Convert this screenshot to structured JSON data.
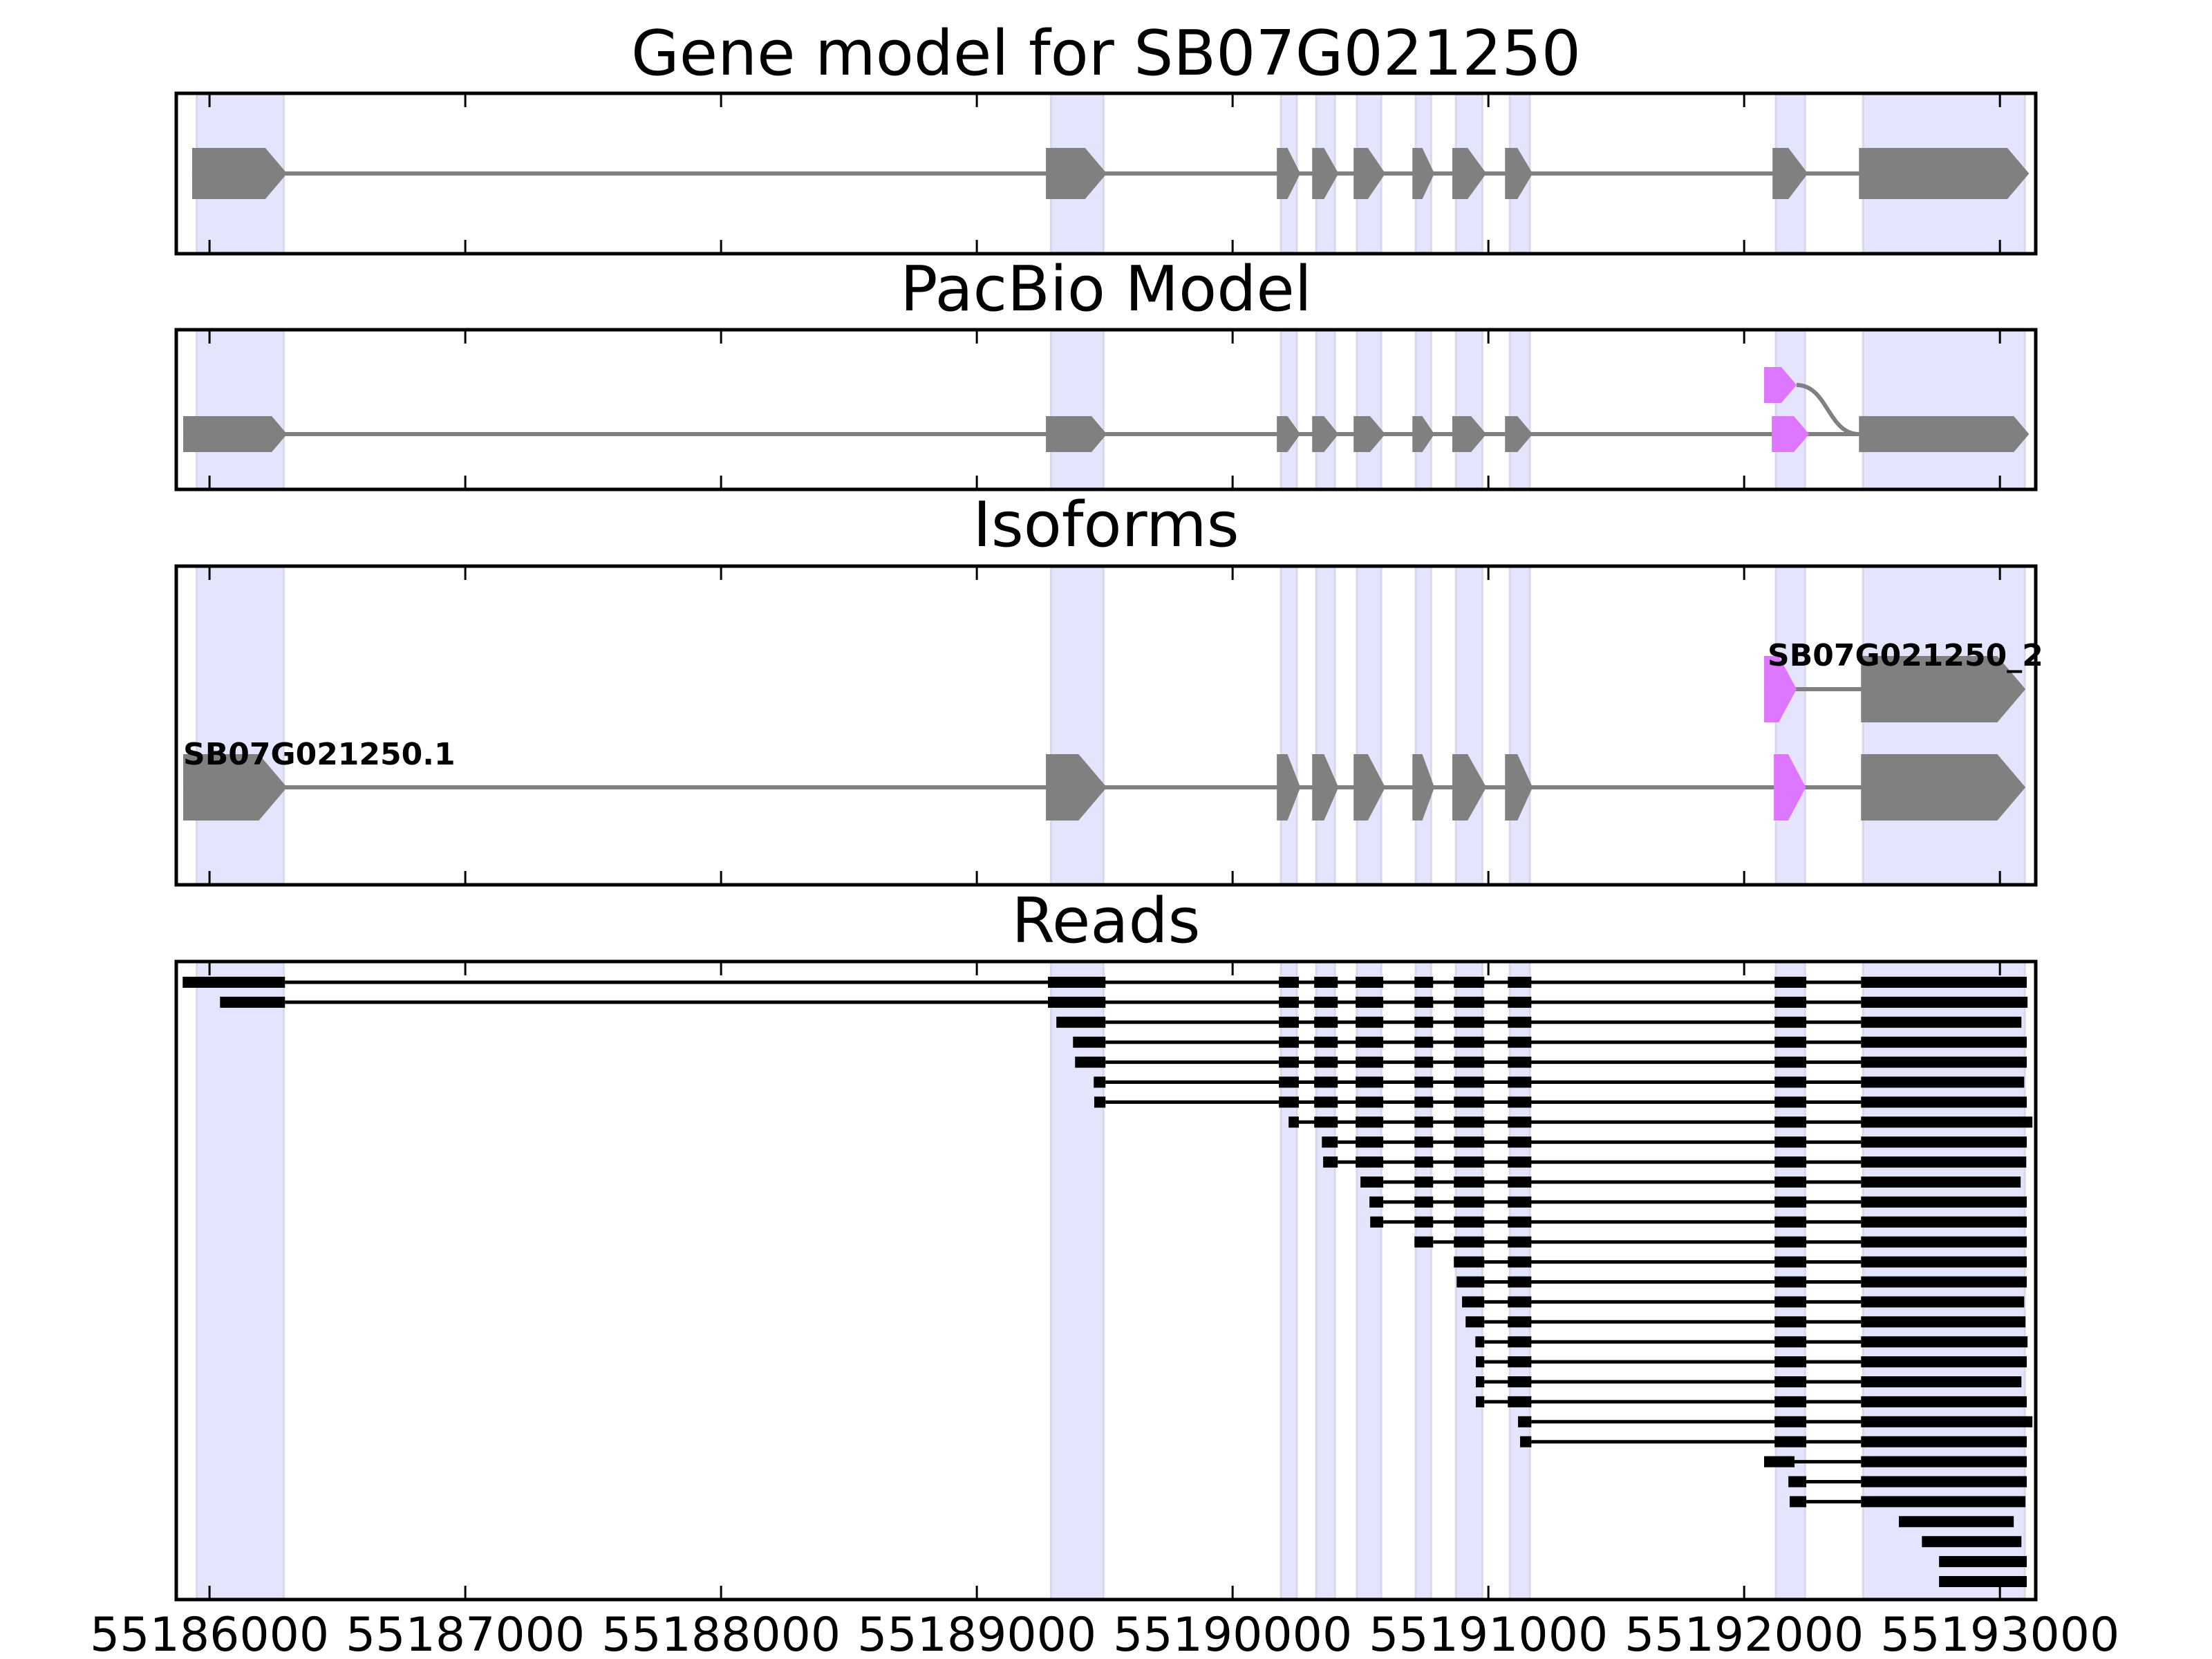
{
  "chart_data": {
    "type": "gene-track",
    "xlim": [
      55185870,
      55193140
    ],
    "xticks": [
      55186000,
      55187000,
      55188000,
      55189000,
      55190000,
      55191000,
      55192000,
      55193000
    ],
    "xtick_labels": [
      "55186000",
      "55187000",
      "55188000",
      "55189000",
      "55190000",
      "55191000",
      "55192000",
      "55193000"
    ],
    "colors": {
      "exon": "#808080",
      "intron": "#808080",
      "alt_exon": "#dd77ff",
      "band": "#e4e4fc",
      "band_edge": "#d8d8ec",
      "read": "#000000",
      "axis": "#000000"
    },
    "highlight_bands": [
      [
        55185950,
        55186290
      ],
      [
        55189290,
        55189495
      ],
      [
        55190189,
        55190251
      ],
      [
        55190327,
        55190400
      ],
      [
        55190486,
        55190581
      ],
      [
        55190716,
        55190776
      ],
      [
        55190873,
        55190976
      ],
      [
        55191084,
        55191162
      ],
      [
        55192124,
        55192238
      ],
      [
        55192465,
        55193097
      ]
    ],
    "panels": [
      {
        "id": "gene-model",
        "title": "Gene model for SB07G021250",
        "tracks": [
          {
            "label": "",
            "exons": [
              [
                55185932,
                55186303,
                "normal"
              ],
              [
                55189270,
                55189508,
                "normal"
              ],
              [
                55190173,
                55190265,
                "normal"
              ],
              [
                55190311,
                55190414,
                "normal"
              ],
              [
                55190473,
                55190597,
                "normal"
              ],
              [
                55190703,
                55190789,
                "normal"
              ],
              [
                55190859,
                55190992,
                "normal"
              ],
              [
                55191065,
                55191173,
                "normal"
              ],
              [
                55192111,
                55192249,
                "normal"
              ],
              [
                55192449,
                55193114,
                "normal"
              ]
            ]
          }
        ]
      },
      {
        "id": "pacbio-model",
        "title": "PacBio Model",
        "tracks": [
          {
            "label": "",
            "exons": [
              [
                55185897,
                55186303,
                "normal"
              ],
              [
                55189270,
                55189508,
                "normal"
              ],
              [
                55190173,
                55190265,
                "normal"
              ],
              [
                55190311,
                55190414,
                "normal"
              ],
              [
                55190473,
                55190597,
                "normal"
              ],
              [
                55190703,
                55190789,
                "normal"
              ],
              [
                55190859,
                55190992,
                "normal"
              ],
              [
                55191065,
                55191173,
                "normal"
              ],
              [
                55192108,
                55192254,
                "alt"
              ],
              [
                55192449,
                55193114,
                "normal"
              ]
            ]
          }
        ],
        "alt_branch": {
          "exon": [
            55192078,
            55192205,
            "alt"
          ],
          "joins_at": 55192449
        }
      },
      {
        "id": "isoforms",
        "title": "Isoforms",
        "tracks": [
          {
            "label": "SB07G021250.1",
            "exons": [
              [
                55185897,
                55186303,
                "normal"
              ],
              [
                55189270,
                55189508,
                "normal"
              ],
              [
                55190173,
                55190265,
                "normal"
              ],
              [
                55190311,
                55190414,
                "normal"
              ],
              [
                55190473,
                55190597,
                "normal"
              ],
              [
                55190703,
                55190789,
                "normal"
              ],
              [
                55190859,
                55190992,
                "normal"
              ],
              [
                55191065,
                55191173,
                "normal"
              ],
              [
                55192116,
                55192241,
                "alt"
              ],
              [
                55192457,
                55193100,
                "normal"
              ]
            ]
          },
          {
            "label": "SB07G021250_2",
            "exons": [
              [
                55192078,
                55192205,
                "alt"
              ],
              [
                55192457,
                55193100,
                "normal"
              ]
            ]
          }
        ]
      },
      {
        "id": "reads",
        "title": "Reads",
        "reads": [
          [
            [
              55185895,
              55186295
            ],
            [
              55189278,
              55189503
            ],
            [
              55190181,
              55190259
            ],
            [
              55190319,
              55190411
            ],
            [
              55190481,
              55190589
            ],
            [
              55190711,
              55190784
            ],
            [
              55190865,
              55190984
            ],
            [
              55191076,
              55191168
            ],
            [
              55192119,
              55192243
            ],
            [
              55192457,
              55193105
            ]
          ],
          [
            [
              55186041,
              55186295
            ],
            [
              55189278,
              55189503
            ],
            [
              55190181,
              55190259
            ],
            [
              55190319,
              55190411
            ],
            [
              55190481,
              55190589
            ],
            [
              55190711,
              55190784
            ],
            [
              55190865,
              55190984
            ],
            [
              55191076,
              55191168
            ],
            [
              55192119,
              55192243
            ],
            [
              55192457,
              55193108
            ]
          ],
          [
            [
              55189311,
              55189503
            ],
            [
              55190181,
              55190259
            ],
            [
              55190319,
              55190411
            ],
            [
              55190481,
              55190589
            ],
            [
              55190711,
              55190784
            ],
            [
              55190865,
              55190984
            ],
            [
              55191076,
              55191168
            ],
            [
              55192119,
              55192243
            ],
            [
              55192457,
              55193084
            ]
          ],
          [
            [
              55189376,
              55189503
            ],
            [
              55190181,
              55190259
            ],
            [
              55190319,
              55190411
            ],
            [
              55190481,
              55190589
            ],
            [
              55190711,
              55190784
            ],
            [
              55190865,
              55190984
            ],
            [
              55191076,
              55191168
            ],
            [
              55192119,
              55192243
            ],
            [
              55192457,
              55193105
            ]
          ],
          [
            [
              55189384,
              55189503
            ],
            [
              55190181,
              55190259
            ],
            [
              55190319,
              55190411
            ],
            [
              55190481,
              55190589
            ],
            [
              55190711,
              55190784
            ],
            [
              55190865,
              55190984
            ],
            [
              55191076,
              55191168
            ],
            [
              55192119,
              55192243
            ],
            [
              55192457,
              55193105
            ]
          ],
          [
            [
              55189457,
              55189503
            ],
            [
              55190181,
              55190259
            ],
            [
              55190319,
              55190411
            ],
            [
              55190481,
              55190589
            ],
            [
              55190711,
              55190784
            ],
            [
              55190865,
              55190984
            ],
            [
              55191076,
              55191168
            ],
            [
              55192119,
              55192243
            ],
            [
              55192457,
              55193095
            ]
          ],
          [
            [
              55189459,
              55189503
            ],
            [
              55190181,
              55190259
            ],
            [
              55190319,
              55190411
            ],
            [
              55190481,
              55190589
            ],
            [
              55190711,
              55190784
            ],
            [
              55190865,
              55190984
            ],
            [
              55191076,
              55191168
            ],
            [
              55192119,
              55192243
            ],
            [
              55192457,
              55193105
            ]
          ],
          [
            [
              55190219,
              55190259
            ],
            [
              55190319,
              55190411
            ],
            [
              55190481,
              55190589
            ],
            [
              55190711,
              55190784
            ],
            [
              55190865,
              55190984
            ],
            [
              55191076,
              55191168
            ],
            [
              55192119,
              55192243
            ],
            [
              55192457,
              55193127
            ]
          ],
          [
            [
              55190349,
              55190411
            ],
            [
              55190481,
              55190589
            ],
            [
              55190711,
              55190784
            ],
            [
              55190865,
              55190984
            ],
            [
              55191076,
              55191168
            ],
            [
              55192119,
              55192243
            ],
            [
              55192457,
              55193105
            ]
          ],
          [
            [
              55190354,
              55190411
            ],
            [
              55190481,
              55190589
            ],
            [
              55190711,
              55190784
            ],
            [
              55190865,
              55190984
            ],
            [
              55191076,
              55191168
            ],
            [
              55192119,
              55192243
            ],
            [
              55192457,
              55193103
            ]
          ],
          [
            [
              55190500,
              55190589
            ],
            [
              55190711,
              55190784
            ],
            [
              55190865,
              55190984
            ],
            [
              55191076,
              55191168
            ],
            [
              55192119,
              55192243
            ],
            [
              55192457,
              55193081
            ]
          ],
          [
            [
              55190535,
              55190589
            ],
            [
              55190711,
              55190784
            ],
            [
              55190865,
              55190984
            ],
            [
              55191076,
              55191168
            ],
            [
              55192119,
              55192243
            ],
            [
              55192457,
              55193105
            ]
          ],
          [
            [
              55190538,
              55190589
            ],
            [
              55190711,
              55190784
            ],
            [
              55190865,
              55190984
            ],
            [
              55191076,
              55191168
            ],
            [
              55192119,
              55192243
            ],
            [
              55192457,
              55193105
            ]
          ],
          [
            [
              55190711,
              55190784
            ],
            [
              55190865,
              55190984
            ],
            [
              55191076,
              55191168
            ],
            [
              55192119,
              55192243
            ],
            [
              55192457,
              55193105
            ]
          ],
          [
            [
              55190865,
              55190984
            ],
            [
              55191076,
              55191168
            ],
            [
              55192119,
              55192243
            ],
            [
              55192457,
              55193105
            ]
          ],
          [
            [
              55190876,
              55190984
            ],
            [
              55191076,
              55191168
            ],
            [
              55192119,
              55192243
            ],
            [
              55192457,
              55193105
            ]
          ],
          [
            [
              55190897,
              55190984
            ],
            [
              55191076,
              55191168
            ],
            [
              55192119,
              55192243
            ],
            [
              55192457,
              55193095
            ]
          ],
          [
            [
              55190911,
              55190984
            ],
            [
              55191076,
              55191168
            ],
            [
              55192119,
              55192243
            ],
            [
              55192457,
              55193100
            ]
          ],
          [
            [
              55190949,
              55190984
            ],
            [
              55191076,
              55191168
            ],
            [
              55192119,
              55192243
            ],
            [
              55192457,
              55193108
            ]
          ],
          [
            [
              55190951,
              55190984
            ],
            [
              55191076,
              55191168
            ],
            [
              55192119,
              55192243
            ],
            [
              55192457,
              55193105
            ]
          ],
          [
            [
              55190951,
              55190984
            ],
            [
              55191076,
              55191168
            ],
            [
              55192119,
              55192243
            ],
            [
              55192457,
              55193084
            ]
          ],
          [
            [
              55190951,
              55190984
            ],
            [
              55191076,
              55191168
            ],
            [
              55192119,
              55192243
            ],
            [
              55192457,
              55193105
            ]
          ],
          [
            [
              55191116,
              55191168
            ],
            [
              55192119,
              55192243
            ],
            [
              55192457,
              55193127
            ]
          ],
          [
            [
              55191124,
              55191168
            ],
            [
              55192119,
              55192243
            ],
            [
              55192457,
              55193105
            ]
          ],
          [
            [
              55192078,
              55192197
            ],
            [
              55192457,
              55193105
            ]
          ],
          [
            [
              55192173,
              55192243
            ],
            [
              55192457,
              55193105
            ]
          ],
          [
            [
              55192178,
              55192243
            ],
            [
              55192457,
              55193100
            ]
          ],
          [
            [
              55192605,
              55193054
            ]
          ],
          [
            [
              55192695,
              55193084
            ]
          ],
          [
            [
              55192762,
              55193105
            ]
          ],
          [
            [
              55192762,
              55193105
            ]
          ]
        ]
      }
    ]
  }
}
